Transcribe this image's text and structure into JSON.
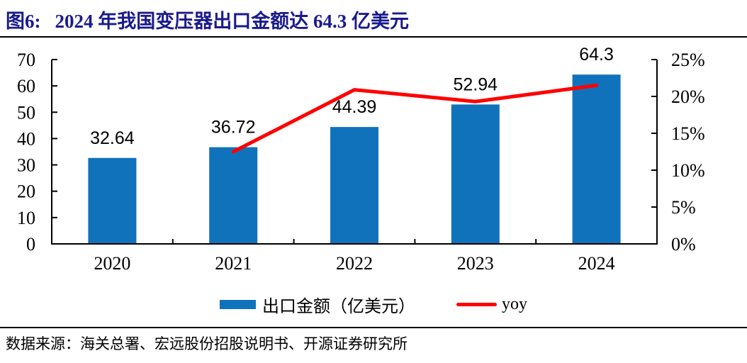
{
  "header": {
    "figure_label": "图6:",
    "title": "2024 年我国变压器出口金额达 64.3 亿美元"
  },
  "colors": {
    "bar": "#1172BC",
    "line": "#FE0000",
    "title": "#1A1A8C",
    "axis": "#000000"
  },
  "legend": {
    "bar_label": "出口金额（亿美元）",
    "line_label": "yoy"
  },
  "footer": {
    "source": "数据来源：海关总署、宏远股份招股说明书、开源证券研究所"
  },
  "chart_data": {
    "type": "combo",
    "title": "2024 年我国变压器出口金额达 64.3 亿美元",
    "categories": [
      "2020",
      "2021",
      "2022",
      "2023",
      "2024"
    ],
    "series": [
      {
        "name": "出口金额（亿美元）",
        "type": "bar",
        "axis": "left",
        "values": [
          32.64,
          36.72,
          44.39,
          52.94,
          64.3
        ],
        "labels": [
          "32.64",
          "36.72",
          "44.39",
          "52.94",
          "64.3"
        ],
        "color": "#1172BC"
      },
      {
        "name": "yoy",
        "type": "line",
        "axis": "right",
        "categories": [
          "2021",
          "2022",
          "2023",
          "2024"
        ],
        "values_pct": [
          12.5,
          20.9,
          19.3,
          21.5
        ],
        "color": "#FE0000"
      }
    ],
    "left_axis": {
      "min": 0,
      "max": 70,
      "step": 10,
      "tick_labels": [
        "0",
        "10",
        "20",
        "30",
        "40",
        "50",
        "60",
        "70"
      ]
    },
    "right_axis": {
      "min": 0,
      "max": 25,
      "step": 5,
      "tick_labels": [
        "0%",
        "5%",
        "10%",
        "15%",
        "20%",
        "25%"
      ]
    },
    "grid": false,
    "legend_position": "bottom"
  }
}
